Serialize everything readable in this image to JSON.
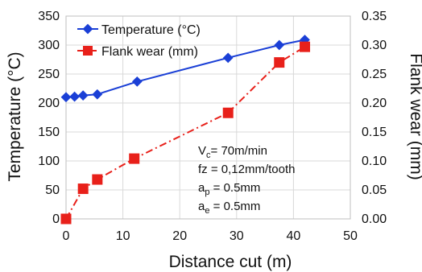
{
  "chart_data": {
    "type": "line",
    "xlabel": "Distance cut (m)",
    "ylabel_left": "Temperature (°C)",
    "ylabel_right": "Flank wear (mm)",
    "xlim": [
      0,
      50
    ],
    "ylim_left": [
      0,
      350
    ],
    "ylim_right": [
      0,
      0.35
    ],
    "x_ticks": [
      "0",
      "10",
      "20",
      "30",
      "40",
      "50"
    ],
    "y_left_ticks": [
      "0",
      "50",
      "100",
      "150",
      "200",
      "250",
      "300",
      "350"
    ],
    "y_right_ticks": [
      "0.00",
      "0.05",
      "0.10",
      "0.15",
      "0.20",
      "0.25",
      "0.30",
      "0.35"
    ],
    "grid": true,
    "legend_position": "top-left",
    "series": [
      {
        "name": "Temperature (°C)",
        "axis": "left",
        "color": "#1a3fd6",
        "marker": "diamond",
        "line_style": "solid",
        "x": [
          0,
          1.5,
          3,
          5.5,
          12.5,
          28.5,
          37.5,
          42
        ],
        "y": [
          210,
          211,
          213,
          215,
          237,
          278,
          300,
          309
        ]
      },
      {
        "name": "Flank wear (mm)",
        "axis": "right",
        "color": "#e8201a",
        "marker": "square",
        "line_style": "dash-dot",
        "x": [
          0,
          3,
          5.5,
          12,
          28.5,
          37.5,
          42
        ],
        "y": [
          0,
          0.052,
          0.068,
          0.104,
          0.183,
          0.27,
          0.297
        ]
      }
    ],
    "annotation_lines": [
      {
        "main": "V",
        "sub": "c",
        "rest": "= 70m/min"
      },
      {
        "main": "fz = 0,12mm/tooth",
        "sub": "",
        "rest": ""
      },
      {
        "main": "a",
        "sub": "p",
        "rest": " = 0.5mm"
      },
      {
        "main": "a",
        "sub": "e",
        "rest": " = 0.5mm"
      }
    ]
  }
}
